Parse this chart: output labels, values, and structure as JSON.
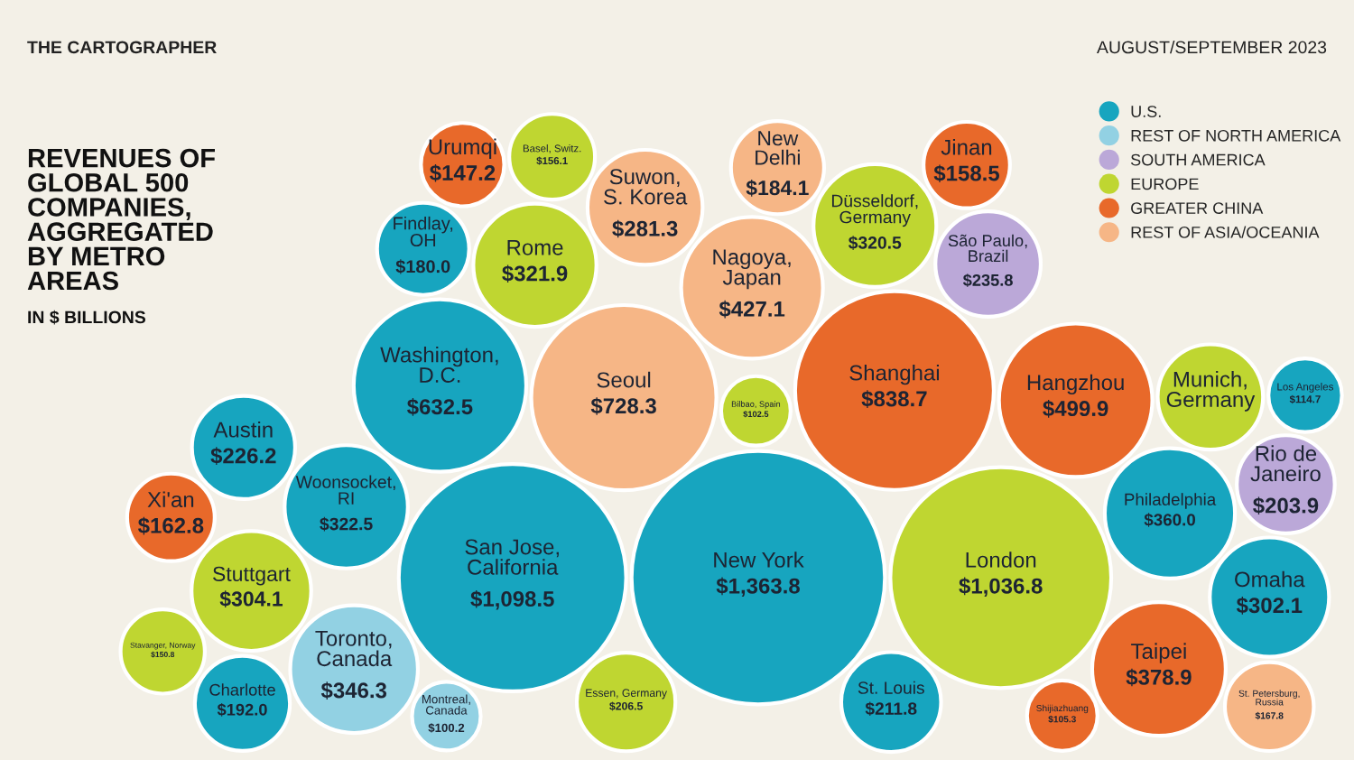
{
  "chart_data": {
    "type": "other",
    "title": "REVENUES OF\nGLOBAL 500\nCOMPANIES,\nAGGREGATED\nBY METRO\nAREAS",
    "subtitle": "IN $ BILLIONS",
    "annotations": [
      "THE CARTOGRAPHER",
      "AUGUST/SEPTEMBER 2023"
    ],
    "legend": "top right",
    "categories": [
      "New York",
      "San Jose,\nCalifornia",
      "London",
      "Shanghai",
      "Seoul",
      "Washington,\nD.C.",
      "Hangzhou",
      "Nagoya,\nJapan",
      "Taipei",
      "Philadelphia",
      "Toronto,\nCanada",
      "Woonsocket,\nRI",
      "Rome",
      "Düsseldorf,\nGermany",
      "Stuttgart",
      "Omaha",
      "Suwon,\nS. Korea",
      "São Paulo,\nBrazil",
      "Austin",
      "St. Louis",
      "Essen, Germany",
      "Rio de\nJaneiro",
      "Charlotte",
      "New\nDelhi",
      "Findlay,\nOH",
      "St. Petersburg,\nRussia",
      "Xi'an",
      "Jinan",
      "Basel, Switz.",
      "Stavanger, Norway",
      "Urumqi",
      "Los Angeles",
      "Shijiazhuang",
      "Bilbao, Spain",
      "Montreal,\nCanada",
      "Munich,\nGermany"
    ],
    "series": [
      {
        "name": "U.S.",
        "color": "#17a5bf",
        "values": [
          1363.8,
          1098.5,
          null,
          null,
          null,
          632.5,
          null,
          null,
          null,
          360.0,
          null,
          322.5,
          null,
          null,
          null,
          302.1,
          null,
          null,
          226.2,
          211.8,
          null,
          null,
          192.0,
          null,
          180.0,
          null,
          null,
          null,
          null,
          null,
          null,
          114.7,
          null,
          null,
          null,
          null
        ],
        "value_labels": [
          "$1,363.8",
          "$1,098.5",
          null,
          null,
          null,
          "$632.5",
          null,
          null,
          null,
          "$360.0",
          null,
          "$322.5",
          null,
          null,
          null,
          "$302.1",
          null,
          null,
          "$226.2",
          "$211.8",
          null,
          null,
          "$192.0",
          null,
          "$180.0",
          null,
          null,
          null,
          null,
          null,
          null,
          "$114.7",
          null,
          null,
          null,
          null
        ]
      },
      {
        "name": "REST OF NORTH AMERICA",
        "color": "#92d1e3",
        "values": [
          null,
          null,
          null,
          null,
          null,
          null,
          null,
          null,
          null,
          null,
          346.3,
          null,
          null,
          null,
          null,
          null,
          null,
          null,
          null,
          null,
          null,
          null,
          null,
          null,
          null,
          null,
          null,
          null,
          null,
          null,
          null,
          null,
          null,
          null,
          100.2,
          null
        ],
        "value_labels": [
          null,
          null,
          null,
          null,
          null,
          null,
          null,
          null,
          null,
          null,
          "$346.3",
          null,
          null,
          null,
          null,
          null,
          null,
          null,
          null,
          null,
          null,
          null,
          null,
          null,
          null,
          null,
          null,
          null,
          null,
          null,
          null,
          null,
          null,
          null,
          "$100.2",
          null
        ]
      },
      {
        "name": "SOUTH AMERICA",
        "color": "#bba8d8",
        "values": [
          null,
          null,
          null,
          null,
          null,
          null,
          null,
          null,
          null,
          null,
          null,
          null,
          null,
          null,
          null,
          null,
          null,
          235.8,
          null,
          null,
          null,
          203.9,
          null,
          null,
          null,
          null,
          null,
          null,
          null,
          null,
          null,
          null,
          null,
          null,
          null,
          null
        ],
        "value_labels": [
          null,
          null,
          null,
          null,
          null,
          null,
          null,
          null,
          null,
          null,
          null,
          null,
          null,
          null,
          null,
          null,
          null,
          "$235.8",
          null,
          null,
          null,
          "$203.9",
          null,
          null,
          null,
          null,
          null,
          null,
          null,
          null,
          null,
          null,
          null,
          null,
          null,
          null
        ]
      },
      {
        "name": "EUROPE",
        "color": "#bfd631",
        "values": [
          null,
          null,
          1036.8,
          null,
          null,
          null,
          null,
          null,
          null,
          null,
          null,
          null,
          321.9,
          320.5,
          304.1,
          null,
          null,
          null,
          null,
          null,
          206.5,
          null,
          null,
          null,
          null,
          null,
          null,
          null,
          156.1,
          150.8,
          null,
          null,
          null,
          102.5,
          null,
          null
        ],
        "value_labels": [
          null,
          null,
          "$1,036.8",
          null,
          null,
          null,
          null,
          null,
          null,
          null,
          null,
          null,
          "$321.9",
          "$320.5",
          "$304.1",
          null,
          null,
          null,
          null,
          null,
          "$206.5",
          null,
          null,
          null,
          null,
          null,
          null,
          null,
          "$156.1",
          "$150.8",
          null,
          null,
          null,
          "$102.5",
          null,
          null
        ]
      },
      {
        "name": "GREATER CHINA",
        "color": "#e8692a",
        "values": [
          null,
          null,
          null,
          838.7,
          null,
          null,
          499.9,
          null,
          378.9,
          null,
          null,
          null,
          null,
          null,
          null,
          null,
          null,
          null,
          null,
          null,
          null,
          null,
          null,
          null,
          null,
          null,
          162.8,
          158.5,
          null,
          null,
          147.2,
          null,
          105.3,
          null,
          null,
          null
        ],
        "value_labels": [
          null,
          null,
          null,
          "$838.7",
          null,
          null,
          "$499.9",
          null,
          "$378.9",
          null,
          null,
          null,
          null,
          null,
          null,
          null,
          null,
          null,
          null,
          null,
          null,
          null,
          null,
          null,
          null,
          null,
          "$162.8",
          "$158.5",
          null,
          null,
          "$147.2",
          null,
          "$105.3",
          null,
          null,
          null
        ]
      },
      {
        "name": "REST OF ASIA/OCEANIA",
        "color": "#f6b686",
        "values": [
          null,
          null,
          null,
          null,
          728.3,
          null,
          null,
          427.1,
          null,
          null,
          null,
          null,
          null,
          null,
          null,
          null,
          281.3,
          null,
          null,
          null,
          null,
          null,
          null,
          184.1,
          null,
          167.8,
          null,
          null,
          null,
          null,
          null,
          null,
          null,
          null,
          null,
          null
        ],
        "value_labels": [
          null,
          null,
          null,
          null,
          "$728.3",
          null,
          null,
          "$427.1",
          null,
          null,
          null,
          null,
          null,
          null,
          null,
          null,
          "$281.3",
          null,
          null,
          null,
          null,
          null,
          null,
          "$184.1",
          null,
          "$167.8",
          null,
          null,
          null,
          null,
          null,
          null,
          null,
          null,
          null,
          null
        ]
      }
    ]
  }
}
